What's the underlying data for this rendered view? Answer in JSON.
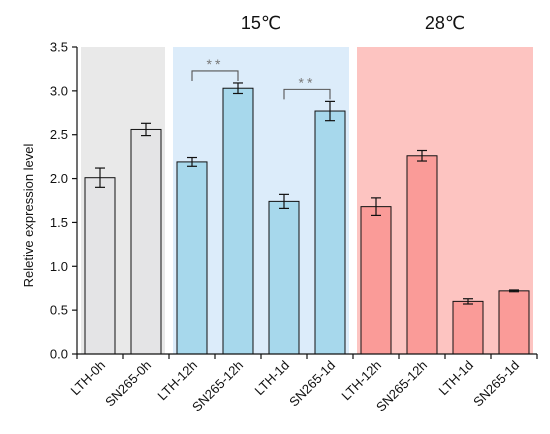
{
  "chart_data": {
    "type": "bar",
    "title": "",
    "xlabel": "",
    "ylabel": "Reletive expression level",
    "ylim": [
      0,
      3.5
    ],
    "yticks": [
      "0.0",
      "0.5",
      "1.0",
      "1.5",
      "2.0",
      "2.5",
      "3.0",
      "3.5"
    ],
    "grid": false,
    "categories": [
      "LTH-0h",
      "SN265-0h",
      "LTH-12h",
      "SN265-12h",
      "LTH-1d",
      "SN265-1d",
      "LTH-12h",
      "SN265-12h",
      "LTH-1d",
      "SN265-1d"
    ],
    "values": [
      2.01,
      2.56,
      2.19,
      3.03,
      1.74,
      2.77,
      1.68,
      2.26,
      0.6,
      0.72
    ],
    "errors": [
      0.11,
      0.07,
      0.05,
      0.06,
      0.08,
      0.11,
      0.1,
      0.06,
      0.03,
      0.01
    ],
    "groups": [
      {
        "label": "",
        "start": 0,
        "end": 1,
        "background": "#e9e9e9",
        "bar_color": "#e4e4e6"
      },
      {
        "label": "15℃",
        "start": 2,
        "end": 5,
        "background": "#dcecfa",
        "bar_color": "#a7d8ec"
      },
      {
        "label": "28℃",
        "start": 6,
        "end": 9,
        "background": "#fdc4c1",
        "bar_color": "#fa9b98"
      }
    ],
    "significance": [
      {
        "from": 2,
        "to": 3,
        "label": "**"
      },
      {
        "from": 4,
        "to": 5,
        "label": "**"
      }
    ]
  }
}
